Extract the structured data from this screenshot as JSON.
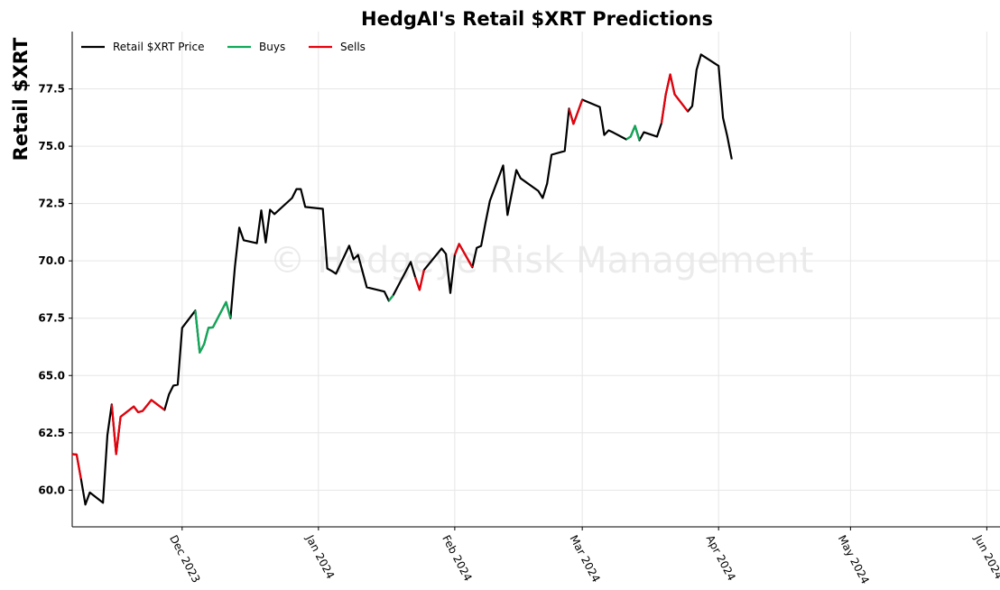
{
  "chart_data": {
    "type": "line",
    "title": "HedgAI's Retail $XRT Predictions",
    "y_label": "Retail $XRT",
    "watermark": "© Hedgeye Risk Management",
    "x": [
      "2023-11-06",
      "2023-11-07",
      "2023-11-08",
      "2023-11-09",
      "2023-11-10",
      "2023-11-13",
      "2023-11-14",
      "2023-11-15",
      "2023-11-16",
      "2023-11-17",
      "2023-11-20",
      "2023-11-21",
      "2023-11-22",
      "2023-11-24",
      "2023-11-27",
      "2023-11-28",
      "2023-11-29",
      "2023-11-30",
      "2023-12-01",
      "2023-12-04",
      "2023-12-05",
      "2023-12-06",
      "2023-12-07",
      "2023-12-08",
      "2023-12-11",
      "2023-12-12",
      "2023-12-13",
      "2023-12-14",
      "2023-12-15",
      "2023-12-18",
      "2023-12-19",
      "2023-12-20",
      "2023-12-21",
      "2023-12-22",
      "2023-12-26",
      "2023-12-27",
      "2023-12-28",
      "2023-12-29",
      "2024-01-02",
      "2024-01-03",
      "2024-01-04",
      "2024-01-05",
      "2024-01-08",
      "2024-01-09",
      "2024-01-10",
      "2024-01-12",
      "2024-01-16",
      "2024-01-17",
      "2024-01-18",
      "2024-01-22",
      "2024-01-23",
      "2024-01-24",
      "2024-01-25",
      "2024-01-29",
      "2024-01-30",
      "2024-01-31",
      "2024-02-01",
      "2024-02-02",
      "2024-02-05",
      "2024-02-06",
      "2024-02-07",
      "2024-02-08",
      "2024-02-09",
      "2024-02-12",
      "2024-02-13",
      "2024-02-15",
      "2024-02-16",
      "2024-02-20",
      "2024-02-21",
      "2024-02-22",
      "2024-02-23",
      "2024-02-26",
      "2024-02-27",
      "2024-02-28",
      "2024-03-01",
      "2024-03-05",
      "2024-03-06",
      "2024-03-07",
      "2024-03-08",
      "2024-03-11",
      "2024-03-12",
      "2024-03-13",
      "2024-03-14",
      "2024-03-15",
      "2024-03-18",
      "2024-03-19",
      "2024-03-20",
      "2024-03-21",
      "2024-03-22",
      "2024-03-25",
      "2024-03-26",
      "2024-03-27",
      "2024-03-28",
      "2024-04-01",
      "2024-04-02",
      "2024-04-03",
      "2024-04-04"
    ],
    "series": [
      {
        "name": "Retail $XRT Price",
        "color": "#000000",
        "values": [
          61.57,
          61.55,
          60.5,
          59.37,
          59.9,
          59.45,
          62.4,
          63.74,
          61.57,
          63.2,
          63.65,
          63.4,
          63.45,
          63.93,
          63.5,
          64.17,
          64.56,
          64.6,
          67.08,
          67.83,
          66.0,
          66.37,
          67.08,
          67.1,
          68.2,
          67.5,
          69.75,
          71.45,
          70.9,
          70.77,
          72.2,
          70.8,
          72.23,
          72.04,
          72.74,
          73.13,
          73.13,
          72.35,
          72.27,
          69.67,
          69.56,
          69.44,
          70.66,
          70.07,
          70.26,
          68.85,
          68.66,
          68.26,
          68.5,
          69.95,
          69.3,
          68.73,
          69.6,
          70.54,
          70.3,
          68.6,
          70.26,
          70.74,
          69.72,
          70.57,
          70.65,
          71.68,
          72.62,
          74.16,
          72.0,
          73.96,
          73.6,
          73.05,
          72.74,
          73.37,
          74.63,
          74.79,
          76.64,
          75.97,
          77.03,
          76.71,
          75.49,
          75.69,
          75.6,
          75.3,
          75.42,
          75.89,
          75.26,
          75.61,
          75.42,
          76.0,
          77.26,
          78.13,
          77.26,
          76.52,
          76.75,
          78.33,
          79.0,
          78.5,
          76.24,
          75.42,
          74.43
        ]
      },
      {
        "name": "Buys",
        "color": "#0fa958",
        "values": [
          null,
          null,
          null,
          null,
          null,
          null,
          null,
          null,
          null,
          null,
          null,
          null,
          null,
          null,
          null,
          null,
          null,
          null,
          null,
          67.83,
          66.0,
          66.37,
          67.08,
          67.1,
          68.2,
          67.5,
          null,
          null,
          null,
          null,
          null,
          null,
          null,
          null,
          null,
          null,
          null,
          null,
          null,
          null,
          null,
          null,
          null,
          null,
          null,
          null,
          null,
          68.26,
          68.5,
          null,
          null,
          null,
          null,
          null,
          null,
          null,
          null,
          null,
          null,
          null,
          null,
          null,
          null,
          null,
          null,
          null,
          null,
          null,
          null,
          null,
          null,
          null,
          null,
          null,
          null,
          null,
          null,
          null,
          null,
          75.3,
          75.42,
          75.89,
          75.26,
          null,
          null,
          null,
          null,
          null,
          null,
          null,
          null,
          null,
          null,
          null,
          null,
          null,
          null
        ]
      },
      {
        "name": "Sells",
        "color": "#e8000b",
        "values": [
          61.57,
          61.55,
          60.5,
          null,
          null,
          null,
          null,
          63.74,
          61.57,
          63.2,
          63.65,
          63.4,
          63.45,
          63.93,
          63.5,
          null,
          null,
          null,
          null,
          null,
          null,
          null,
          null,
          null,
          null,
          null,
          null,
          null,
          null,
          null,
          null,
          null,
          null,
          null,
          null,
          null,
          null,
          null,
          null,
          null,
          null,
          null,
          null,
          null,
          null,
          null,
          null,
          null,
          null,
          null,
          69.3,
          68.73,
          69.6,
          null,
          null,
          null,
          70.26,
          70.74,
          69.72,
          null,
          null,
          null,
          null,
          null,
          null,
          null,
          null,
          null,
          null,
          null,
          null,
          null,
          76.64,
          75.97,
          77.03,
          null,
          null,
          null,
          null,
          null,
          null,
          null,
          null,
          null,
          null,
          76.0,
          77.26,
          78.13,
          77.26,
          76.52,
          null,
          null,
          null,
          null,
          null,
          null,
          null
        ]
      }
    ],
    "xlim": [
      "2023-11-06",
      "2024-06-04"
    ],
    "xticks": [
      {
        "value": "2023-12-01",
        "label": "Dec 2023"
      },
      {
        "value": "2024-01-01",
        "label": "Jan 2024"
      },
      {
        "value": "2024-02-01",
        "label": "Feb 2024"
      },
      {
        "value": "2024-03-01",
        "label": "Mar 2024"
      },
      {
        "value": "2024-04-01",
        "label": "Apr 2024"
      },
      {
        "value": "2024-05-01",
        "label": "May 2024"
      },
      {
        "value": "2024-06-01",
        "label": "Jun 2024"
      }
    ],
    "ylim": [
      58.4,
      80.0
    ],
    "yticks": [
      {
        "value": 60,
        "label": "60.0"
      },
      62.5,
      {
        "value": 65,
        "label": "65.0"
      },
      67.5,
      {
        "value": 70,
        "label": "70.0"
      },
      72.5,
      {
        "value": 75,
        "label": "75.0"
      },
      77.5
    ],
    "grid": true,
    "legend": "upper left"
  }
}
